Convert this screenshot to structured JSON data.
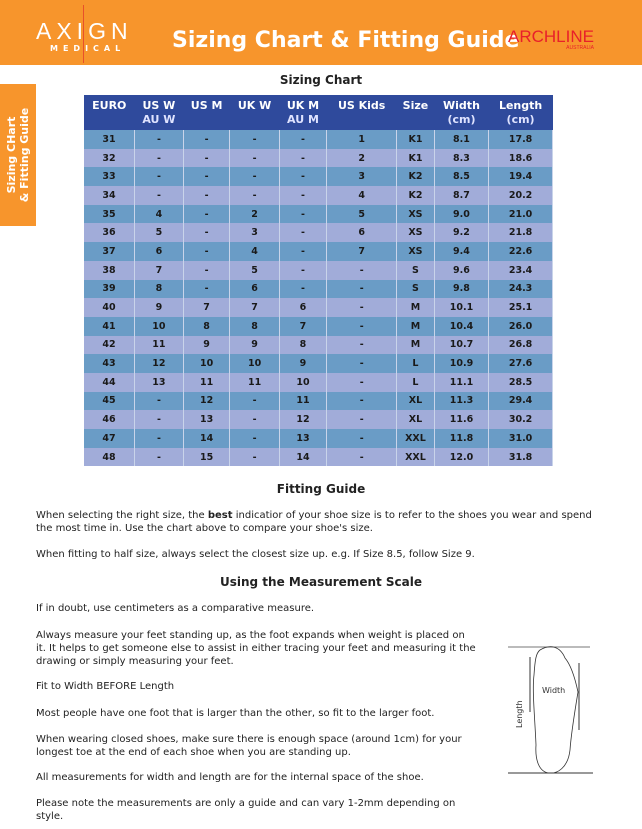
{
  "header": {
    "brand": "AXIGN",
    "brand_sub": "MEDICAL",
    "title": "Sizing Chart & Fitting Guide",
    "partner": "ARCHLINE",
    "partner_sub": "AUSTRALIA"
  },
  "side_tab": {
    "line1": "Sizing CHart",
    "line2": "& Fitting Guide"
  },
  "sizing": {
    "heading": "Sizing Chart",
    "columns": [
      [
        "EURO",
        ""
      ],
      [
        "US W",
        "AU W"
      ],
      [
        "US M",
        ""
      ],
      [
        "UK W",
        ""
      ],
      [
        "UK M",
        "AU M"
      ],
      [
        "US Kids",
        ""
      ],
      [
        "Size",
        ""
      ],
      [
        "Width",
        "(cm)"
      ],
      [
        "Length",
        "(cm)"
      ]
    ],
    "rows": [
      [
        "31",
        "-",
        "-",
        "-",
        "-",
        "1",
        "K1",
        "8.1",
        "17.8"
      ],
      [
        "32",
        "-",
        "-",
        "-",
        "-",
        "2",
        "K1",
        "8.3",
        "18.6"
      ],
      [
        "33",
        "-",
        "-",
        "-",
        "-",
        "3",
        "K2",
        "8.5",
        "19.4"
      ],
      [
        "34",
        "-",
        "-",
        "-",
        "-",
        "4",
        "K2",
        "8.7",
        "20.2"
      ],
      [
        "35",
        "4",
        "-",
        "2",
        "-",
        "5",
        "XS",
        "9.0",
        "21.0"
      ],
      [
        "36",
        "5",
        "-",
        "3",
        "-",
        "6",
        "XS",
        "9.2",
        "21.8"
      ],
      [
        "37",
        "6",
        "-",
        "4",
        "-",
        "7",
        "XS",
        "9.4",
        "22.6"
      ],
      [
        "38",
        "7",
        "-",
        "5",
        "-",
        "-",
        "S",
        "9.6",
        "23.4"
      ],
      [
        "39",
        "8",
        "-",
        "6",
        "-",
        "-",
        "S",
        "9.8",
        "24.3"
      ],
      [
        "40",
        "9",
        "7",
        "7",
        "6",
        "-",
        "M",
        "10.1",
        "25.1"
      ],
      [
        "41",
        "10",
        "8",
        "8",
        "7",
        "-",
        "M",
        "10.4",
        "26.0"
      ],
      [
        "42",
        "11",
        "9",
        "9",
        "8",
        "-",
        "M",
        "10.7",
        "26.8"
      ],
      [
        "43",
        "12",
        "10",
        "10",
        "9",
        "-",
        "L",
        "10.9",
        "27.6"
      ],
      [
        "44",
        "13",
        "11",
        "11",
        "10",
        "-",
        "L",
        "11.1",
        "28.5"
      ],
      [
        "45",
        "-",
        "12",
        "-",
        "11",
        "-",
        "XL",
        "11.3",
        "29.4"
      ],
      [
        "46",
        "-",
        "13",
        "-",
        "12",
        "-",
        "XL",
        "11.6",
        "30.2"
      ],
      [
        "47",
        "-",
        "14",
        "-",
        "13",
        "-",
        "XXL",
        "11.8",
        "31.0"
      ],
      [
        "48",
        "-",
        "15",
        "-",
        "14",
        "-",
        "XXL",
        "12.0",
        "31.8"
      ]
    ]
  },
  "fitting": {
    "heading": "Fitting Guide",
    "p1_before": "When selecting the right size, the ",
    "p1_bold": "best",
    "p1_after": " indicatior of your shoe size is to refer to the shoes you wear and spend the most time in. Use the chart above to compare your shoe's size.",
    "p2": "When fitting to half size, always select the closest size up. e.g. If Size 8.5, follow Size 9."
  },
  "measure": {
    "heading": "Using the Measurement Scale",
    "paras": [
      "If in doubt, use centimeters as a comparative measure.",
      "Always measure your feet standing up, as the foot expands when weight is placed on it. It helps to get someone else to assist in either tracing your feet and measuring it the drawing or simply measuring your feet.",
      "Fit to Width BEFORE Length",
      "Most people have one foot that is larger than the other, so fit to the larger foot.",
      "When wearing closed shoes, make sure there is enough space (around 1cm) for your longest toe at the end of each shoe when you are standing up.",
      "All measurements for width and length are for the internal space of the shoe.",
      "Please note the measurements are only a guide and can vary 1-2mm depending on style."
    ],
    "diagram_width": "Width",
    "diagram_length": "Length"
  },
  "colors": {
    "orange": "#f7952c",
    "header_blue": "#2f4a9c",
    "row_dark": "#6a9cc6",
    "row_light": "#a1acd9",
    "archline_red": "#e8202a"
  }
}
